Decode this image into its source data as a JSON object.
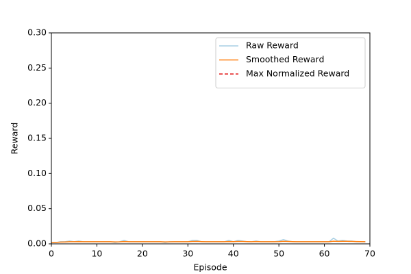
{
  "chart_data": {
    "type": "line",
    "xlabel": "Episode",
    "ylabel": "Reward",
    "x": [
      0,
      1,
      2,
      3,
      4,
      5,
      6,
      7,
      8,
      9,
      10,
      11,
      12,
      13,
      14,
      15,
      16,
      17,
      18,
      19,
      20,
      21,
      22,
      23,
      24,
      25,
      26,
      27,
      28,
      29,
      30,
      31,
      32,
      33,
      34,
      35,
      36,
      37,
      38,
      39,
      40,
      41,
      42,
      43,
      44,
      45,
      46,
      47,
      48,
      49,
      50,
      51,
      52,
      53,
      54,
      55,
      56,
      57,
      58,
      59,
      60,
      61,
      62,
      63,
      64,
      65,
      66,
      67,
      68,
      69
    ],
    "series": [
      {
        "name": "Raw Reward",
        "color": "#a6cee3",
        "dash": false,
        "values": [
          0.002,
          0.002,
          0.003,
          0.003,
          0.004,
          0.003,
          0.004,
          0.003,
          0.003,
          0.003,
          0.003,
          0.003,
          0.003,
          0.003,
          0.002,
          0.003,
          0.005,
          0.003,
          0.003,
          0.003,
          0.003,
          0.003,
          0.003,
          0.003,
          0.003,
          0.002,
          0.003,
          0.003,
          0.003,
          0.003,
          0.003,
          0.005,
          0.005,
          0.003,
          0.003,
          0.003,
          0.003,
          0.003,
          0.003,
          0.005,
          0.003,
          0.005,
          0.004,
          0.003,
          0.003,
          0.004,
          0.003,
          0.003,
          0.003,
          0.003,
          0.004,
          0.006,
          0.004,
          0.003,
          0.003,
          0.003,
          0.003,
          0.003,
          0.003,
          0.003,
          0.003,
          0.003,
          0.008,
          0.004,
          0.005,
          0.004,
          0.004,
          0.003,
          0.003,
          0.003
        ]
      },
      {
        "name": "Smoothed Reward",
        "color": "#ff7f0e",
        "dash": false,
        "values": [
          0.002,
          0.002,
          0.0025,
          0.0027,
          0.003,
          0.003,
          0.0032,
          0.003,
          0.003,
          0.003,
          0.003,
          0.003,
          0.003,
          0.003,
          0.0028,
          0.0029,
          0.0033,
          0.0031,
          0.003,
          0.003,
          0.003,
          0.003,
          0.003,
          0.003,
          0.003,
          0.0028,
          0.0029,
          0.003,
          0.003,
          0.003,
          0.003,
          0.0034,
          0.0035,
          0.0032,
          0.003,
          0.003,
          0.003,
          0.003,
          0.003,
          0.0033,
          0.0032,
          0.0034,
          0.0034,
          0.0032,
          0.0031,
          0.0033,
          0.0031,
          0.003,
          0.003,
          0.003,
          0.0032,
          0.0036,
          0.0034,
          0.0032,
          0.0031,
          0.003,
          0.003,
          0.003,
          0.003,
          0.003,
          0.003,
          0.003,
          0.0038,
          0.0035,
          0.0037,
          0.0036,
          0.0035,
          0.0033,
          0.0032,
          0.0031
        ]
      },
      {
        "name": "Max Normalized Reward",
        "color": "#e31a1c",
        "dash": true,
        "values": [
          null,
          null,
          null,
          null,
          null,
          null,
          null,
          null,
          null,
          null,
          null,
          null,
          null,
          null,
          null,
          null,
          null,
          null,
          null,
          null,
          null,
          null,
          null,
          null,
          null,
          null,
          null,
          null,
          null,
          null,
          null,
          null,
          null,
          null,
          null,
          null,
          null,
          null,
          null,
          null,
          null,
          null,
          null,
          null,
          null,
          null,
          null,
          null,
          null,
          null,
          null,
          null,
          null,
          null,
          null,
          null,
          null,
          null,
          null,
          null,
          null,
          null,
          null,
          null,
          null,
          null,
          null,
          null,
          null,
          null
        ]
      }
    ],
    "xlim": [
      0,
      70
    ],
    "xticks": [
      0,
      10,
      20,
      30,
      40,
      50,
      60,
      70
    ],
    "ylim": [
      0,
      0.3
    ],
    "yticks": [
      {
        "value": 0,
        "label": "0.00"
      },
      {
        "value": 0.05,
        "label": "0.05"
      },
      {
        "value": 0.1,
        "label": "0.10"
      },
      {
        "value": 0.15,
        "label": "0.15"
      },
      {
        "value": 0.2,
        "label": "0.20"
      },
      {
        "value": 0.25,
        "label": "0.25"
      },
      {
        "value": 0.3,
        "label": "0.30"
      }
    ],
    "legend": "upper right",
    "grid": false
  }
}
